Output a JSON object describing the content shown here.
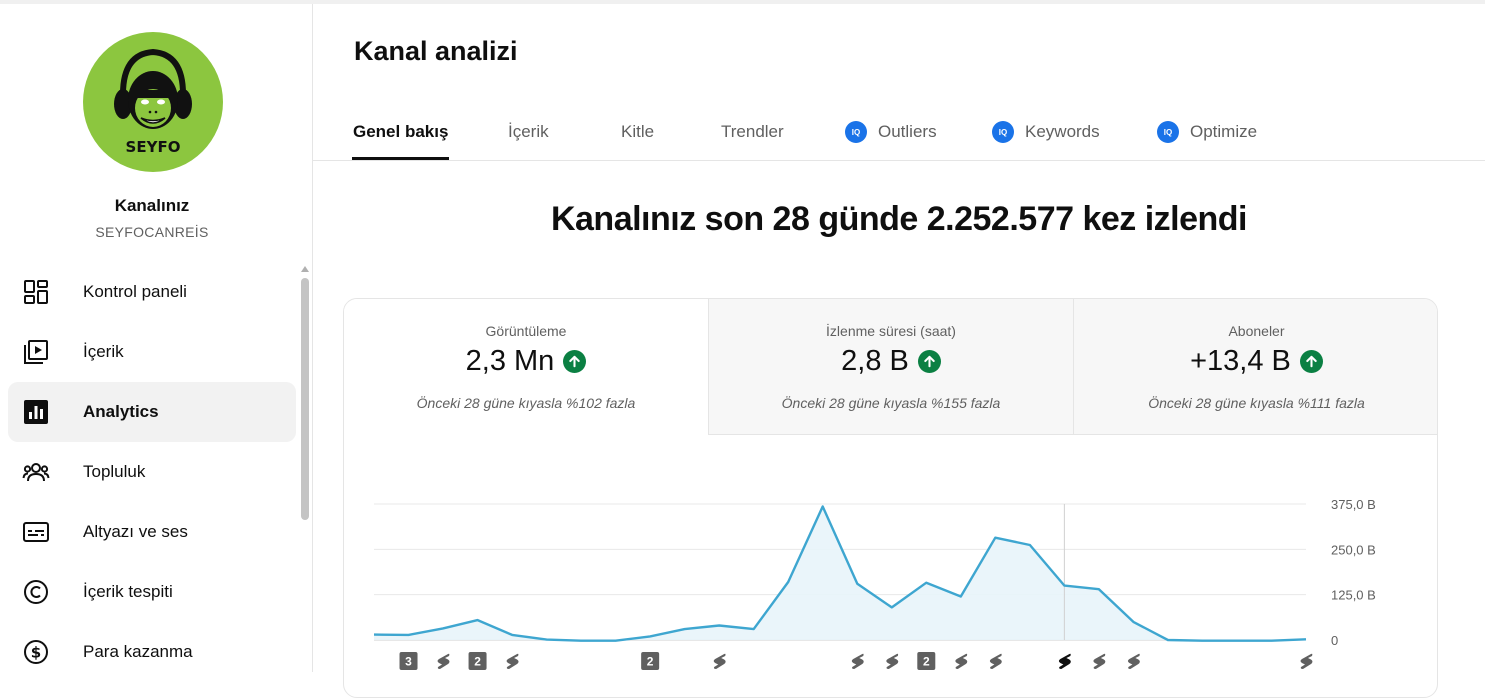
{
  "sidebar": {
    "avatar_text": "SEYFO",
    "channel_title": "Kanalınız",
    "channel_handle": "SEYFOCANREİS",
    "items": [
      {
        "label": "Kontrol paneli",
        "icon": "dashboard-icon"
      },
      {
        "label": "İçerik",
        "icon": "content-icon"
      },
      {
        "label": "Analytics",
        "icon": "analytics-icon",
        "active": true
      },
      {
        "label": "Topluluk",
        "icon": "community-icon"
      },
      {
        "label": "Altyazı ve ses",
        "icon": "subtitles-icon"
      },
      {
        "label": "İçerik tespiti",
        "icon": "copyright-icon"
      },
      {
        "label": "Para kazanma",
        "icon": "dollar-icon"
      }
    ]
  },
  "header": {
    "title": "Kanal analizi",
    "tabs": [
      {
        "label": "Genel bakış",
        "active": true
      },
      {
        "label": "İçerik"
      },
      {
        "label": "Kitle"
      },
      {
        "label": "Trendler"
      },
      {
        "label": "Outliers",
        "badge": "IQ"
      },
      {
        "label": "Keywords",
        "badge": "IQ"
      },
      {
        "label": "Optimize",
        "badge": "IQ"
      }
    ]
  },
  "summary": {
    "headline": "Kanalınız son 28 günde 2.252.577 kez izlendi"
  },
  "metrics": [
    {
      "label": "Görüntüleme",
      "value": "2,3 Mn",
      "compare": "Önceki 28 güne kıyasla %102 fazla",
      "selected": true
    },
    {
      "label": "İzlenme süresi (saat)",
      "value": "2,8 B",
      "compare": "Önceki 28 güne kıyasla %155 fazla"
    },
    {
      "label": "Aboneler",
      "value": "+13,4 B",
      "compare": "Önceki 28 güne kıyasla %111 fazla"
    }
  ],
  "colors": {
    "accent": "#1a73e8",
    "up": "#0b8043",
    "line": "#3ea6d0",
    "area": "#e8f4fa"
  },
  "chart_data": {
    "type": "area",
    "yticks": [
      "375,0 B",
      "250,0 B",
      "125,0 B",
      "0"
    ],
    "ylim": [
      0,
      375000
    ],
    "values": [
      15000,
      14000,
      32000,
      55000,
      14000,
      1000,
      -2000,
      -2000,
      10000,
      30000,
      40000,
      30000,
      160000,
      368000,
      155000,
      90000,
      158000,
      120000,
      282000,
      262000,
      150000,
      140000,
      50000,
      0,
      -2000,
      -2000,
      -2000,
      2000
    ],
    "hover_index": 20,
    "markers": [
      {
        "index": 1,
        "kind": "count",
        "label": "3"
      },
      {
        "index": 2,
        "kind": "short"
      },
      {
        "index": 3,
        "kind": "count",
        "label": "2"
      },
      {
        "index": 4,
        "kind": "short"
      },
      {
        "index": 8,
        "kind": "count",
        "label": "2"
      },
      {
        "index": 10,
        "kind": "short"
      },
      {
        "index": 14,
        "kind": "short"
      },
      {
        "index": 15,
        "kind": "short"
      },
      {
        "index": 16,
        "kind": "count",
        "label": "2"
      },
      {
        "index": 17,
        "kind": "short"
      },
      {
        "index": 18,
        "kind": "short"
      },
      {
        "index": 20,
        "kind": "short",
        "highlight": true
      },
      {
        "index": 21,
        "kind": "short"
      },
      {
        "index": 22,
        "kind": "short"
      },
      {
        "index": 27,
        "kind": "short"
      }
    ]
  }
}
